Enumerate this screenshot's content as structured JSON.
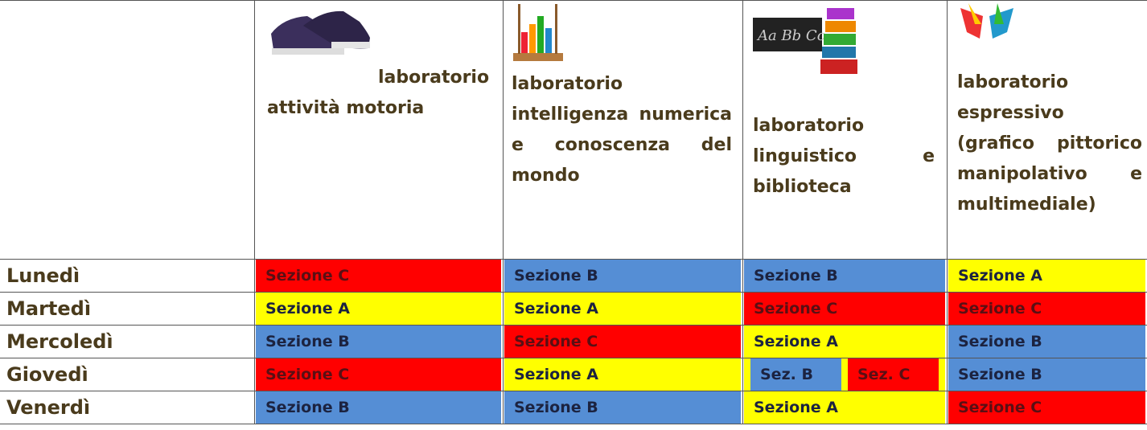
{
  "table": {
    "header": [
      "laboratorio attività motoria",
      "laboratorio intelligenza numerica e conoscenza del mondo",
      "laboratorio linguistico e biblioteca",
      "laboratorio espressivo (grafico pittorico manipolativo e multimediale)"
    ],
    "rows": [
      {
        "day": "Lunedì",
        "cells": [
          {
            "text": "Sezione C",
            "color": "#ff0000"
          },
          {
            "text": "Sezione B",
            "color": "#558ed5"
          },
          {
            "text": "Sezione B",
            "color": "#558ed5"
          },
          {
            "text": "Sezione A",
            "color": "#ffff00"
          }
        ]
      },
      {
        "day": "Martedì",
        "cells": [
          {
            "text": "Sezione A",
            "color": "#ffff00"
          },
          {
            "text": "Sezione A",
            "color": "#ffff00"
          },
          {
            "text": "Sezione C",
            "color": "#ff0000"
          },
          {
            "text": "Sezione C",
            "color": "#ff0000"
          }
        ]
      },
      {
        "day": "Mercoledì",
        "cells": [
          {
            "text": "Sezione B",
            "color": "#558ed5"
          },
          {
            "text": "Sezione C",
            "color": "#ff0000"
          },
          {
            "text": "Sezione A",
            "color": "#ffff00"
          },
          {
            "text": "Sezione B",
            "color": "#558ed5"
          }
        ]
      },
      {
        "day": "Giovedì",
        "cells": [
          {
            "text": "Sezione C",
            "color": "#ff0000"
          },
          {
            "text": "Sezione A",
            "color": "#ffff00"
          },
          {
            "color": "#ffff00",
            "parts": [
              {
                "text": "Sez. B",
                "color": "#558ed5"
              },
              {
                "text": "Sez. C",
                "color": "#ff0000"
              }
            ]
          },
          {
            "text": "Sezione B",
            "color": "#558ed5"
          }
        ]
      },
      {
        "day": "Venerdì",
        "cells": [
          {
            "text": "Sezione B",
            "color": "#558ed5"
          },
          {
            "text": "Sezione B",
            "color": "#558ed5"
          },
          {
            "text": "Sezione A",
            "color": "#ffff00"
          },
          {
            "text": "Sezione C",
            "color": "#ff0000"
          }
        ]
      }
    ]
  }
}
